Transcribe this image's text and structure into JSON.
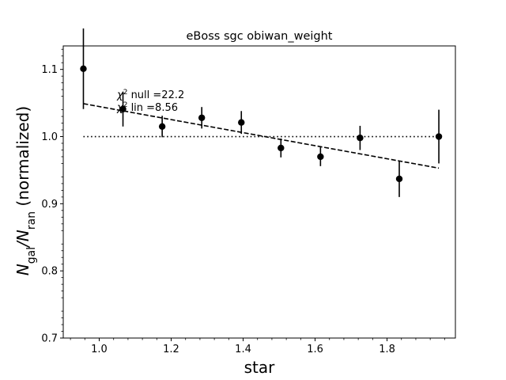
{
  "chart_data": {
    "type": "scatter",
    "title": "eBoss sgc obiwan_weight",
    "xlabel": "star",
    "ylabel": {
      "main": "N",
      "sub1": "gal",
      "slash": "/N",
      "sub2": "ran",
      "tail": " (normalized)"
    },
    "xlim": [
      0.9,
      1.99
    ],
    "ylim": [
      0.7,
      1.135
    ],
    "xticks": [
      1.0,
      1.2,
      1.4,
      1.6,
      1.8
    ],
    "xtick_labels": [
      "1.0",
      "1.2",
      "1.4",
      "1.6",
      "1.8"
    ],
    "yticks": [
      0.7,
      0.8,
      0.9,
      1.0,
      1.1
    ],
    "ytick_labels": [
      "0.7",
      "0.8",
      "0.9",
      "1.0",
      "1.1"
    ],
    "points": [
      {
        "x": 0.956,
        "y": 1.101,
        "err": 0.06
      },
      {
        "x": 1.066,
        "y": 1.041,
        "err": 0.026
      },
      {
        "x": 1.175,
        "y": 1.015,
        "err": 0.016
      },
      {
        "x": 1.285,
        "y": 1.028,
        "err": 0.016
      },
      {
        "x": 1.395,
        "y": 1.021,
        "err": 0.017
      },
      {
        "x": 1.505,
        "y": 0.983,
        "err": 0.014
      },
      {
        "x": 1.615,
        "y": 0.97,
        "err": 0.014
      },
      {
        "x": 1.725,
        "y": 0.998,
        "err": 0.018
      },
      {
        "x": 1.834,
        "y": 0.937,
        "err": 0.027
      },
      {
        "x": 1.944,
        "y": 1.0,
        "err": 0.04
      }
    ],
    "null_line": {
      "x": [
        0.956,
        1.944
      ],
      "y": [
        1.0,
        1.0
      ]
    },
    "lin_fit": {
      "x": [
        0.956,
        1.944
      ],
      "y": [
        1.049,
        0.953
      ]
    },
    "annotations": [
      {
        "chi": "χ",
        "sup": "2",
        "text": " null =22.2"
      },
      {
        "chi": "χ",
        "sup": "2",
        "text": " lin =8.56"
      }
    ],
    "grid": false
  }
}
